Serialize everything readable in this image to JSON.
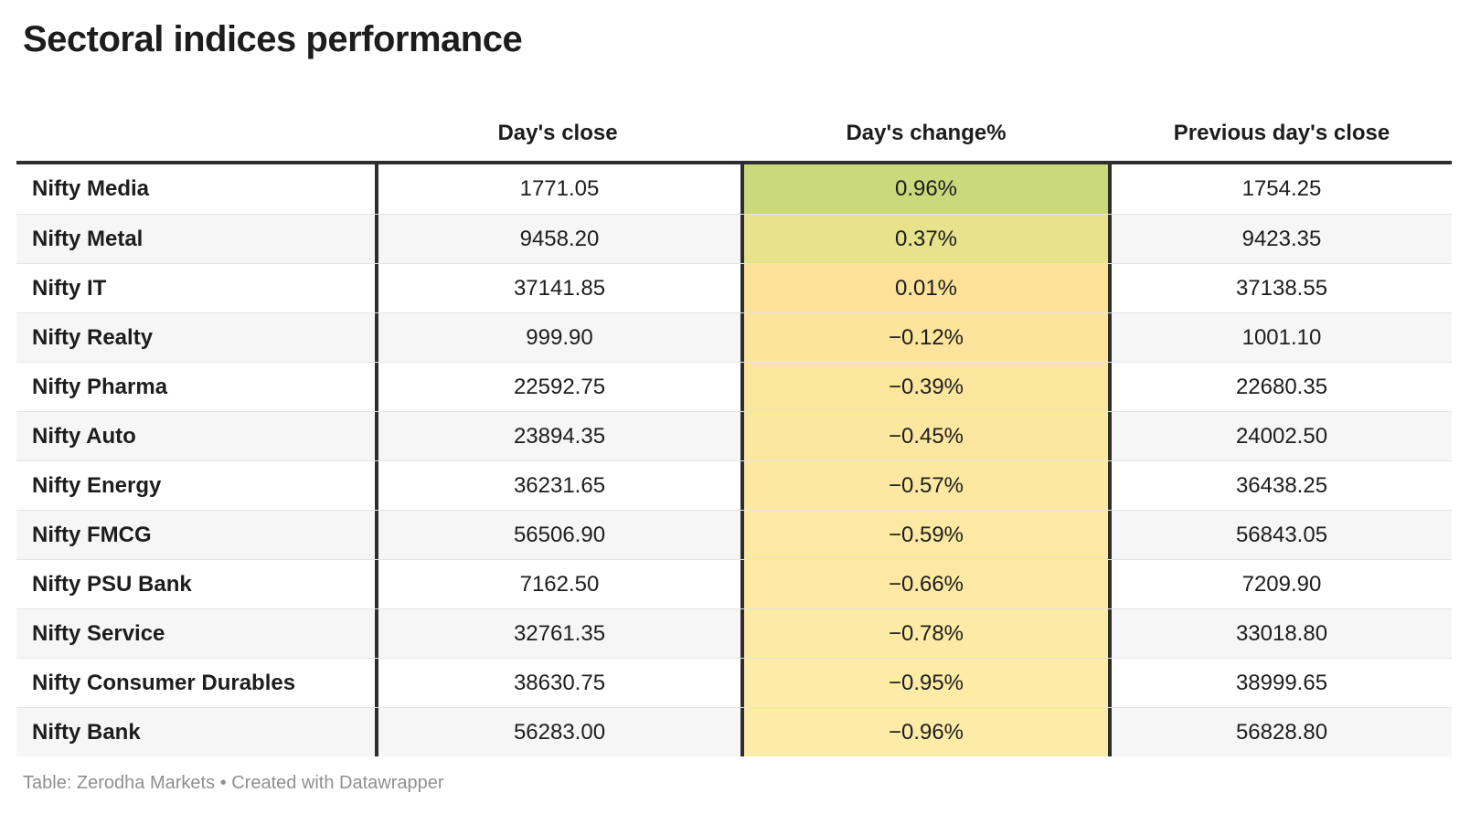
{
  "title": "Sectoral indices performance",
  "footer": "Table: Zerodha Markets • Created with Datawrapper",
  "colors": {
    "border_dark": "#2e2e2e",
    "row_stripe": "#f6f6f6",
    "row_separator": "#e4e4e4",
    "text": "#1d1d1d",
    "footer_text": "#8f8f8f",
    "scale_positive_max": "#c9d97b",
    "scale_zero": "#fbe298",
    "scale_negative_min": "#fdeca7"
  },
  "chart_data": {
    "type": "table",
    "title": "Sectoral indices performance",
    "columns": [
      "",
      "Day's close",
      "Day's change%",
      "Previous day's close"
    ],
    "rows": [
      {
        "label": "Nifty Media",
        "close": "1771.05",
        "change": "0.96%",
        "prev": "1754.25",
        "change_color": "#c9d97b"
      },
      {
        "label": "Nifty Metal",
        "close": "9458.20",
        "change": "0.37%",
        "prev": "9423.35",
        "change_color": "#e7e28c"
      },
      {
        "label": "Nifty IT",
        "close": "37141.85",
        "change": "0.01%",
        "prev": "37138.55",
        "change_color": "#fbe298"
      },
      {
        "label": "Nifty Realty",
        "close": "999.90",
        "change": "−0.12%",
        "prev": "1001.10",
        "change_color": "#fce49c"
      },
      {
        "label": "Nifty Pharma",
        "close": "22592.75",
        "change": "−0.39%",
        "prev": "22680.35",
        "change_color": "#fce69e"
      },
      {
        "label": "Nifty Auto",
        "close": "23894.35",
        "change": "−0.45%",
        "prev": "24002.50",
        "change_color": "#fce7a0"
      },
      {
        "label": "Nifty Energy",
        "close": "36231.65",
        "change": "−0.57%",
        "prev": "36438.25",
        "change_color": "#fde8a2"
      },
      {
        "label": "Nifty FMCG",
        "close": "56506.90",
        "change": "−0.59%",
        "prev": "56843.05",
        "change_color": "#fde9a3"
      },
      {
        "label": "Nifty PSU Bank",
        "close": "7162.50",
        "change": "−0.66%",
        "prev": "7209.90",
        "change_color": "#fde9a3"
      },
      {
        "label": "Nifty Service",
        "close": "32761.35",
        "change": "−0.78%",
        "prev": "33018.80",
        "change_color": "#fdeaa5"
      },
      {
        "label": "Nifty Consumer Durables",
        "close": "38630.75",
        "change": "−0.95%",
        "prev": "38999.65",
        "change_color": "#fdeba6"
      },
      {
        "label": "Nifty Bank",
        "close": "56283.00",
        "change": "−0.96%",
        "prev": "56828.80",
        "change_color": "#fdeca7"
      }
    ]
  }
}
